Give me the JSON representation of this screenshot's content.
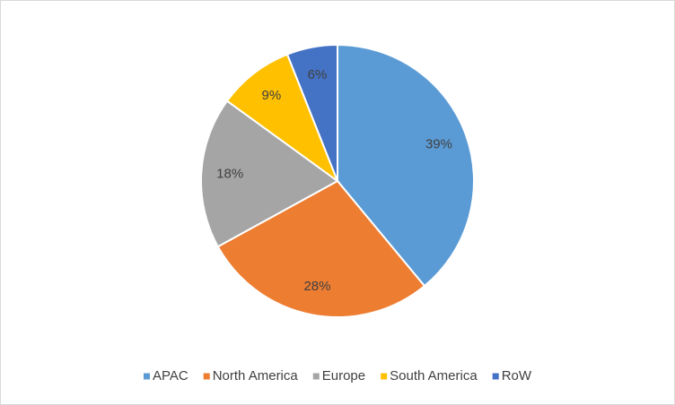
{
  "chart_data": {
    "type": "pie",
    "categories": [
      "APAC",
      "North America",
      "Europe",
      "South America",
      "RoW"
    ],
    "values": [
      39,
      28,
      18,
      9,
      6
    ],
    "value_labels": [
      "39%",
      "28%",
      "18%",
      "9%",
      "6%"
    ],
    "colors": [
      "#5b9bd5",
      "#ed7d31",
      "#a5a5a5",
      "#ffc000",
      "#4472c4"
    ],
    "legend": "bottom"
  }
}
